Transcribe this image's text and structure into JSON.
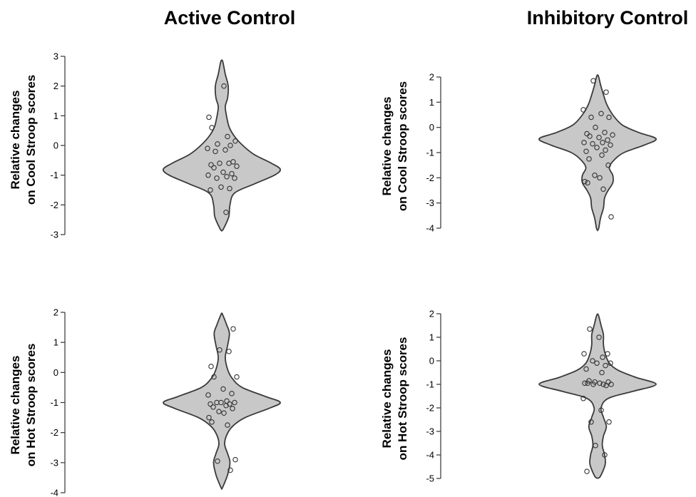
{
  "column_titles": [
    "Active Control",
    "Inhibitory Control"
  ],
  "chart_data": [
    {
      "type": "violin",
      "column_title": "Active Control",
      "ylabel_line1": "Relative changes",
      "ylabel_line2": "on Cool Stroop scores",
      "ylim": [
        -3,
        3
      ],
      "yticks": [
        3,
        2,
        1,
        0,
        -1,
        -2,
        -3
      ],
      "violin_center_y": [
        -2.8,
        -2.4,
        -2.0,
        -1.6,
        -1.3,
        -1.0,
        -0.8,
        -0.6,
        -0.3,
        0.0,
        0.3,
        0.6,
        0.9,
        1.3,
        1.6,
        2.0,
        2.4,
        2.8
      ],
      "violin_density": [
        0.03,
        0.12,
        0.14,
        0.22,
        0.55,
        0.9,
        1.0,
        0.85,
        0.55,
        0.36,
        0.22,
        0.13,
        0.09,
        0.06,
        0.1,
        0.11,
        0.06,
        0.02
      ],
      "points": [
        2.0,
        0.95,
        0.6,
        0.3,
        0.15,
        0.05,
        0.0,
        -0.1,
        -0.15,
        -0.2,
        -0.55,
        -0.6,
        -0.6,
        -0.65,
        -0.7,
        -0.75,
        -0.9,
        -0.95,
        -1.0,
        -1.05,
        -1.1,
        -1.1,
        -1.4,
        -1.45,
        -1.5,
        -2.25
      ]
    },
    {
      "type": "violin",
      "column_title": "Inhibitory Control",
      "ylabel_line1": "Relative changes",
      "ylabel_line2": "on Cool Stroop scores",
      "ylim": [
        -4,
        2
      ],
      "yticks": [
        2,
        1,
        0,
        -1,
        -2,
        -3,
        -4
      ],
      "violin_center_y": [
        -4.0,
        -3.6,
        -3.2,
        -2.8,
        -2.5,
        -2.2,
        -1.9,
        -1.6,
        -1.3,
        -1.0,
        -0.7,
        -0.45,
        -0.2,
        0.1,
        0.5,
        0.9,
        1.3,
        1.7,
        2.0
      ],
      "violin_density": [
        0.02,
        0.05,
        0.1,
        0.12,
        0.18,
        0.26,
        0.26,
        0.2,
        0.28,
        0.45,
        0.8,
        1.0,
        0.7,
        0.42,
        0.26,
        0.16,
        0.1,
        0.05,
        0.02
      ],
      "points": [
        1.85,
        1.4,
        0.7,
        0.55,
        0.4,
        0.4,
        0.0,
        -0.2,
        -0.25,
        -0.3,
        -0.35,
        -0.4,
        -0.5,
        -0.6,
        -0.6,
        -0.65,
        -0.7,
        -0.8,
        -0.9,
        -0.95,
        -1.1,
        -1.25,
        -1.5,
        -1.9,
        -2.0,
        -2.15,
        -2.2,
        -2.45,
        -3.55
      ]
    },
    {
      "type": "violin",
      "column_title": "Active Control",
      "ylabel_line1": "Relative changes",
      "ylabel_line2": "on Hot Stroop scores",
      "ylim": [
        -4,
        2
      ],
      "yticks": [
        2,
        1,
        0,
        -1,
        -2,
        -3,
        -4
      ],
      "violin_center_y": [
        -3.8,
        -3.4,
        -3.0,
        -2.7,
        -2.4,
        -2.1,
        -1.8,
        -1.5,
        -1.2,
        -1.0,
        -0.8,
        -0.5,
        -0.2,
        0.1,
        0.5,
        0.9,
        1.3,
        1.6,
        1.9
      ],
      "violin_density": [
        0.02,
        0.1,
        0.14,
        0.1,
        0.05,
        0.08,
        0.18,
        0.4,
        0.8,
        1.0,
        0.75,
        0.35,
        0.18,
        0.1,
        0.06,
        0.1,
        0.13,
        0.08,
        0.02
      ],
      "points": [
        1.45,
        0.75,
        0.7,
        0.2,
        -0.15,
        -0.15,
        -0.55,
        -0.7,
        -0.75,
        -0.95,
        -1.0,
        -1.0,
        -1.0,
        -1.05,
        -1.05,
        -1.1,
        -1.15,
        -1.2,
        -1.3,
        -1.35,
        -1.5,
        -1.65,
        -1.75,
        -2.9,
        -2.95,
        -3.25
      ]
    },
    {
      "type": "violin",
      "column_title": "Inhibitory Control",
      "ylabel_line1": "Relative changes",
      "ylabel_line2": "on Hot Stroop scores",
      "ylim": [
        -5,
        2
      ],
      "yticks": [
        2,
        1,
        0,
        -1,
        -2,
        -3,
        -4,
        -5
      ],
      "violin_center_y": [
        -4.9,
        -4.4,
        -4.0,
        -3.6,
        -3.2,
        -2.8,
        -2.4,
        -2.0,
        -1.6,
        -1.3,
        -1.0,
        -0.7,
        -0.4,
        -0.1,
        0.3,
        0.7,
        1.1,
        1.5,
        1.9
      ],
      "violin_density": [
        0.05,
        0.13,
        0.12,
        0.08,
        0.1,
        0.15,
        0.1,
        0.06,
        0.18,
        0.6,
        1.0,
        0.65,
        0.35,
        0.2,
        0.13,
        0.1,
        0.1,
        0.06,
        0.02
      ],
      "points": [
        1.35,
        1.0,
        0.3,
        0.3,
        0.15,
        0.0,
        -0.1,
        -0.1,
        -0.2,
        -0.35,
        -0.5,
        -0.85,
        -0.9,
        -0.9,
        -0.95,
        -0.95,
        -0.95,
        -1.0,
        -1.0,
        -1.0,
        -1.05,
        -1.6,
        -2.1,
        -2.6,
        -2.6,
        -3.6,
        -4.0,
        -4.7
      ]
    }
  ]
}
